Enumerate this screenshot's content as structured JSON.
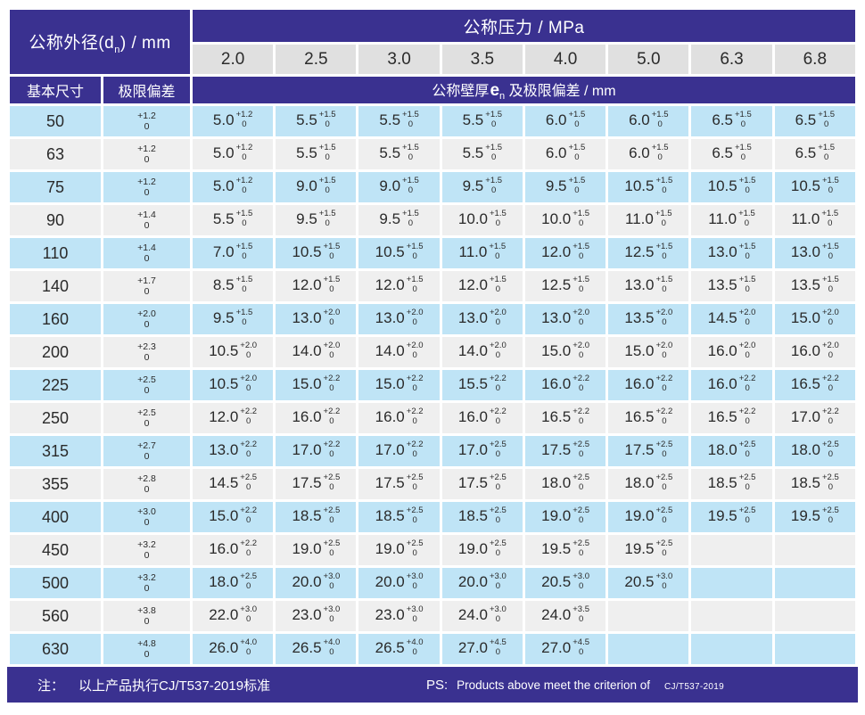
{
  "colors": {
    "navy": "#3a3190",
    "row_blue": "#bfe4f6",
    "row_gray": "#efefef",
    "chip_gray": "#e0e0e0",
    "text_dark": "#2a2a2a"
  },
  "header": {
    "outer_diameter": {
      "prefix": "公称外径(d",
      "sub": "n",
      "suffix": ") / mm"
    },
    "pressure_title": "公称压力 / MPa",
    "pressure_values": [
      "2.0",
      "2.5",
      "3.0",
      "3.5",
      "4.0",
      "5.0",
      "6.3",
      "6.8"
    ],
    "basic_size": "基本尺寸",
    "limit_deviation": "极限偏差",
    "wall_thickness": {
      "prefix": "公称壁厚",
      "symbol": "e",
      "sub": "n",
      "suffix": " 及极限偏差 / mm"
    }
  },
  "table": {
    "rows": [
      {
        "size": "50",
        "dev": [
          "+1.2",
          "0"
        ],
        "cells": [
          [
            "5.0",
            "+1.2",
            "0"
          ],
          [
            "5.5",
            "+1.5",
            "0"
          ],
          [
            "5.5",
            "+1.5",
            "0"
          ],
          [
            "5.5",
            "+1.5",
            "0"
          ],
          [
            "6.0",
            "+1.5",
            "0"
          ],
          [
            "6.0",
            "+1.5",
            "0"
          ],
          [
            "6.5",
            "+1.5",
            "0"
          ],
          [
            "6.5",
            "+1.5",
            "0"
          ]
        ]
      },
      {
        "size": "63",
        "dev": [
          "+1.2",
          "0"
        ],
        "cells": [
          [
            "5.0",
            "+1.2",
            "0"
          ],
          [
            "5.5",
            "+1.5",
            "0"
          ],
          [
            "5.5",
            "+1.5",
            "0"
          ],
          [
            "5.5",
            "+1.5",
            "0"
          ],
          [
            "6.0",
            "+1.5",
            "0"
          ],
          [
            "6.0",
            "+1.5",
            "0"
          ],
          [
            "6.5",
            "+1.5",
            "0"
          ],
          [
            "6.5",
            "+1.5",
            "0"
          ]
        ]
      },
      {
        "size": "75",
        "dev": [
          "+1.2",
          "0"
        ],
        "cells": [
          [
            "5.0",
            "+1.2",
            "0"
          ],
          [
            "9.0",
            "+1.5",
            "0"
          ],
          [
            "9.0",
            "+1.5",
            "0"
          ],
          [
            "9.5",
            "+1.5",
            "0"
          ],
          [
            "9.5",
            "+1.5",
            "0"
          ],
          [
            "10.5",
            "+1.5",
            "0"
          ],
          [
            "10.5",
            "+1.5",
            "0"
          ],
          [
            "10.5",
            "+1.5",
            "0"
          ]
        ]
      },
      {
        "size": "90",
        "dev": [
          "+1.4",
          "0"
        ],
        "cells": [
          [
            "5.5",
            "+1.5",
            "0"
          ],
          [
            "9.5",
            "+1.5",
            "0"
          ],
          [
            "9.5",
            "+1.5",
            "0"
          ],
          [
            "10.0",
            "+1.5",
            "0"
          ],
          [
            "10.0",
            "+1.5",
            "0"
          ],
          [
            "11.0",
            "+1.5",
            "0"
          ],
          [
            "11.0",
            "+1.5",
            "0"
          ],
          [
            "11.0",
            "+1.5",
            "0"
          ]
        ]
      },
      {
        "size": "110",
        "dev": [
          "+1.4",
          "0"
        ],
        "cells": [
          [
            "7.0",
            "+1.5",
            "0"
          ],
          [
            "10.5",
            "+1.5",
            "0"
          ],
          [
            "10.5",
            "+1.5",
            "0"
          ],
          [
            "11.0",
            "+1.5",
            "0"
          ],
          [
            "12.0",
            "+1.5",
            "0"
          ],
          [
            "12.5",
            "+1.5",
            "0"
          ],
          [
            "13.0",
            "+1.5",
            "0"
          ],
          [
            "13.0",
            "+1.5",
            "0"
          ]
        ]
      },
      {
        "size": "140",
        "dev": [
          "+1.7",
          "0"
        ],
        "cells": [
          [
            "8.5",
            "+1.5",
            "0"
          ],
          [
            "12.0",
            "+1.5",
            "0"
          ],
          [
            "12.0",
            "+1.5",
            "0"
          ],
          [
            "12.0",
            "+1.5",
            "0"
          ],
          [
            "12.5",
            "+1.5",
            "0"
          ],
          [
            "13.0",
            "+1.5",
            "0"
          ],
          [
            "13.5",
            "+1.5",
            "0"
          ],
          [
            "13.5",
            "+1.5",
            "0"
          ]
        ]
      },
      {
        "size": "160",
        "dev": [
          "+2.0",
          "0"
        ],
        "cells": [
          [
            "9.5",
            "+1.5",
            "0"
          ],
          [
            "13.0",
            "+2.0",
            "0"
          ],
          [
            "13.0",
            "+2.0",
            "0"
          ],
          [
            "13.0",
            "+2.0",
            "0"
          ],
          [
            "13.0",
            "+2.0",
            "0"
          ],
          [
            "13.5",
            "+2.0",
            "0"
          ],
          [
            "14.5",
            "+2.0",
            "0"
          ],
          [
            "15.0",
            "+2.0",
            "0"
          ]
        ]
      },
      {
        "size": "200",
        "dev": [
          "+2.3",
          "0"
        ],
        "cells": [
          [
            "10.5",
            "+2.0",
            "0"
          ],
          [
            "14.0",
            "+2.0",
            "0"
          ],
          [
            "14.0",
            "+2.0",
            "0"
          ],
          [
            "14.0",
            "+2.0",
            "0"
          ],
          [
            "15.0",
            "+2.0",
            "0"
          ],
          [
            "15.0",
            "+2.0",
            "0"
          ],
          [
            "16.0",
            "+2.0",
            "0"
          ],
          [
            "16.0",
            "+2.0",
            "0"
          ]
        ]
      },
      {
        "size": "225",
        "dev": [
          "+2.5",
          "0"
        ],
        "cells": [
          [
            "10.5",
            "+2.0",
            "0"
          ],
          [
            "15.0",
            "+2.2",
            "0"
          ],
          [
            "15.0",
            "+2.2",
            "0"
          ],
          [
            "15.5",
            "+2.2",
            "0"
          ],
          [
            "16.0",
            "+2.2",
            "0"
          ],
          [
            "16.0",
            "+2.2",
            "0"
          ],
          [
            "16.0",
            "+2.2",
            "0"
          ],
          [
            "16.5",
            "+2.2",
            "0"
          ]
        ]
      },
      {
        "size": "250",
        "dev": [
          "+2.5",
          "0"
        ],
        "cells": [
          [
            "12.0",
            "+2.2",
            "0"
          ],
          [
            "16.0",
            "+2.2",
            "0"
          ],
          [
            "16.0",
            "+2.2",
            "0"
          ],
          [
            "16.0",
            "+2.2",
            "0"
          ],
          [
            "16.5",
            "+2.2",
            "0"
          ],
          [
            "16.5",
            "+2.2",
            "0"
          ],
          [
            "16.5",
            "+2.2",
            "0"
          ],
          [
            "17.0",
            "+2.2",
            "0"
          ]
        ]
      },
      {
        "size": "315",
        "dev": [
          "+2.7",
          "0"
        ],
        "cells": [
          [
            "13.0",
            "+2.2",
            "0"
          ],
          [
            "17.0",
            "+2.2",
            "0"
          ],
          [
            "17.0",
            "+2.2",
            "0"
          ],
          [
            "17.0",
            "+2.5",
            "0"
          ],
          [
            "17.5",
            "+2.5",
            "0"
          ],
          [
            "17.5",
            "+2.5",
            "0"
          ],
          [
            "18.0",
            "+2.5",
            "0"
          ],
          [
            "18.0",
            "+2.5",
            "0"
          ]
        ]
      },
      {
        "size": "355",
        "dev": [
          "+2.8",
          "0"
        ],
        "cells": [
          [
            "14.5",
            "+2.5",
            "0"
          ],
          [
            "17.5",
            "+2.5",
            "0"
          ],
          [
            "17.5",
            "+2.5",
            "0"
          ],
          [
            "17.5",
            "+2.5",
            "0"
          ],
          [
            "18.0",
            "+2.5",
            "0"
          ],
          [
            "18.0",
            "+2.5",
            "0"
          ],
          [
            "18.5",
            "+2.5",
            "0"
          ],
          [
            "18.5",
            "+2.5",
            "0"
          ]
        ]
      },
      {
        "size": "400",
        "dev": [
          "+3.0",
          "0"
        ],
        "cells": [
          [
            "15.0",
            "+2.2",
            "0"
          ],
          [
            "18.5",
            "+2.5",
            "0"
          ],
          [
            "18.5",
            "+2.5",
            "0"
          ],
          [
            "18.5",
            "+2.5",
            "0"
          ],
          [
            "19.0",
            "+2.5",
            "0"
          ],
          [
            "19.0",
            "+2.5",
            "0"
          ],
          [
            "19.5",
            "+2.5",
            "0"
          ],
          [
            "19.5",
            "+2.5",
            "0"
          ]
        ]
      },
      {
        "size": "450",
        "dev": [
          "+3.2",
          "0"
        ],
        "cells": [
          [
            "16.0",
            "+2.2",
            "0"
          ],
          [
            "19.0",
            "+2.5",
            "0"
          ],
          [
            "19.0",
            "+2.5",
            "0"
          ],
          [
            "19.0",
            "+2.5",
            "0"
          ],
          [
            "19.5",
            "+2.5",
            "0"
          ],
          [
            "19.5",
            "+2.5",
            "0"
          ],
          null,
          null
        ]
      },
      {
        "size": "500",
        "dev": [
          "+3.2",
          "0"
        ],
        "cells": [
          [
            "18.0",
            "+2.5",
            "0"
          ],
          [
            "20.0",
            "+3.0",
            "0"
          ],
          [
            "20.0",
            "+3.0",
            "0"
          ],
          [
            "20.0",
            "+3.0",
            "0"
          ],
          [
            "20.5",
            "+3.0",
            "0"
          ],
          [
            "20.5",
            "+3.0",
            "0"
          ],
          null,
          null
        ]
      },
      {
        "size": "560",
        "dev": [
          "+3.8",
          "0"
        ],
        "cells": [
          [
            "22.0",
            "+3.0",
            "0"
          ],
          [
            "23.0",
            "+3.0",
            "0"
          ],
          [
            "23.0",
            "+3.0",
            "0"
          ],
          [
            "24.0",
            "+3.0",
            "0"
          ],
          [
            "24.0",
            "+3.5",
            "0"
          ],
          null,
          null,
          null
        ]
      },
      {
        "size": "630",
        "dev": [
          "+4.8",
          "0"
        ],
        "cells": [
          [
            "26.0",
            "+4.0",
            "0"
          ],
          [
            "26.5",
            "+4.0",
            "0"
          ],
          [
            "26.5",
            "+4.0",
            "0"
          ],
          [
            "27.0",
            "+4.5",
            "0"
          ],
          [
            "27.0",
            "+4.5",
            "0"
          ],
          null,
          null,
          null
        ]
      }
    ]
  },
  "footer": {
    "note_label": "注：",
    "note_text": "以上产品执行CJ/T537-2019标准",
    "ps_label": "PS:",
    "ps_text": "Products above meet the criterion of",
    "ps_standard": "CJ/T537-2019"
  }
}
